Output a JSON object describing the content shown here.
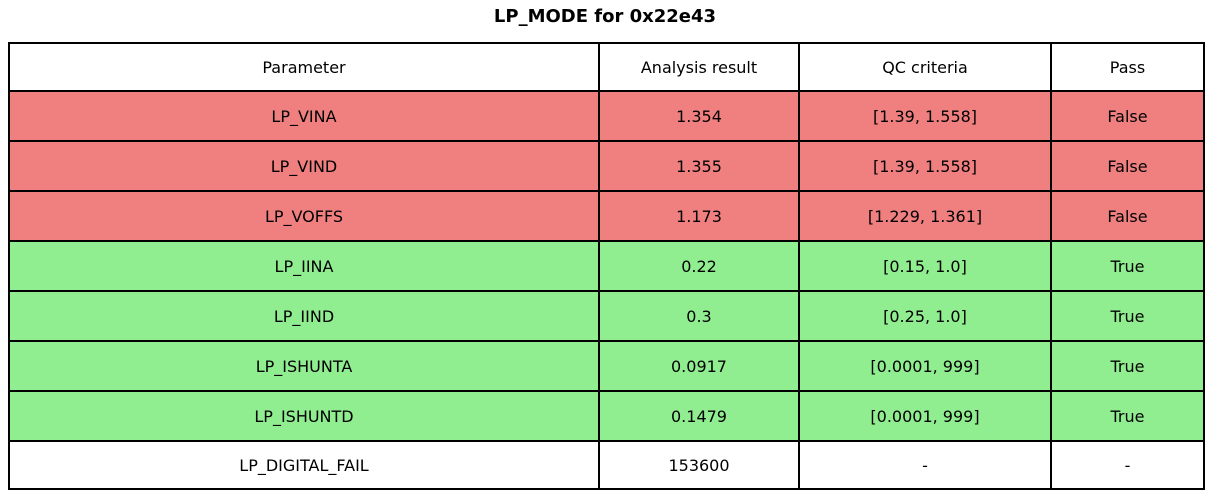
{
  "title": "LP_MODE for 0x22e43",
  "colors": {
    "fail": "#f08080",
    "pass": "#90ee90",
    "neutral": "#ffffff",
    "border": "#000000",
    "text": "#000000"
  },
  "chart_data": {
    "type": "table",
    "title": "LP_MODE for 0x22e43",
    "headers": [
      "Parameter",
      "Analysis result",
      "QC criteria",
      "Pass"
    ],
    "rows": [
      {
        "parameter": "LP_VINA",
        "analysis_result": "1.354",
        "qc_criteria": "[1.39, 1.558]",
        "pass": "False",
        "status": "fail"
      },
      {
        "parameter": "LP_VIND",
        "analysis_result": "1.355",
        "qc_criteria": "[1.39, 1.558]",
        "pass": "False",
        "status": "fail"
      },
      {
        "parameter": "LP_VOFFS",
        "analysis_result": "1.173",
        "qc_criteria": "[1.229, 1.361]",
        "pass": "False",
        "status": "fail"
      },
      {
        "parameter": "LP_IINA",
        "analysis_result": "0.22",
        "qc_criteria": "[0.15, 1.0]",
        "pass": "True",
        "status": "pass"
      },
      {
        "parameter": "LP_IIND",
        "analysis_result": "0.3",
        "qc_criteria": "[0.25, 1.0]",
        "pass": "True",
        "status": "pass"
      },
      {
        "parameter": "LP_ISHUNTA",
        "analysis_result": "0.0917",
        "qc_criteria": "[0.0001, 999]",
        "pass": "True",
        "status": "pass"
      },
      {
        "parameter": "LP_ISHUNTD",
        "analysis_result": "0.1479",
        "qc_criteria": "[0.0001, 999]",
        "pass": "True",
        "status": "pass"
      },
      {
        "parameter": "LP_DIGITAL_FAIL",
        "analysis_result": "153600",
        "qc_criteria": "-",
        "pass": "-",
        "status": "neutral"
      }
    ]
  }
}
